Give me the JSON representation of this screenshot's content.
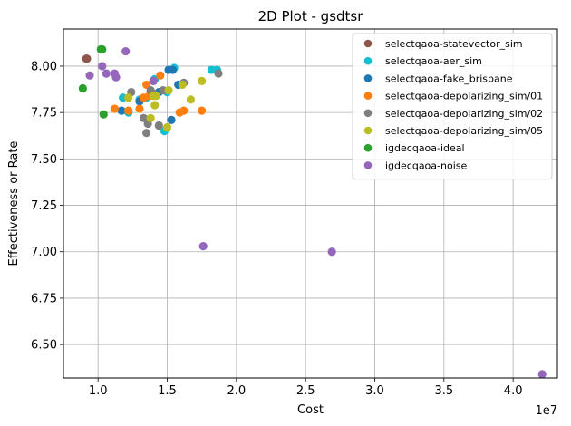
{
  "chart_data": {
    "type": "scatter",
    "title": "2D Plot - gsdtsr",
    "xlabel": "Cost",
    "ylabel": "Effectiveness or Rate",
    "x_offset_label": "1e7",
    "x_scale": 10000000,
    "xlim": [
      7500000,
      43200000
    ],
    "ylim": [
      6.32,
      8.2
    ],
    "x_ticks": [
      10000000,
      15000000,
      20000000,
      25000000,
      30000000,
      35000000,
      40000000
    ],
    "x_tick_labels": [
      "1.0",
      "1.5",
      "2.0",
      "2.5",
      "3.0",
      "3.5",
      "4.0"
    ],
    "y_ticks": [
      6.5,
      6.75,
      7.0,
      7.25,
      7.5,
      7.75,
      8.0
    ],
    "y_tick_labels": [
      "6.50",
      "6.75",
      "7.00",
      "7.25",
      "7.50",
      "7.75",
      "8.00"
    ],
    "grid": true,
    "legend_position": "top-right",
    "series": [
      {
        "name": "selectqaoa-statevector_sim",
        "color": "#8c564b",
        "points": [
          [
            9150000,
            8.04
          ],
          [
            9200000,
            8.04
          ]
        ]
      },
      {
        "name": "selectqaoa-aer_sim",
        "color": "#17becf",
        "points": [
          [
            11800000,
            7.83
          ],
          [
            12200000,
            7.75
          ],
          [
            13000000,
            7.82
          ],
          [
            13500000,
            7.83
          ],
          [
            14100000,
            7.93
          ],
          [
            14800000,
            7.65
          ],
          [
            15000000,
            7.86
          ],
          [
            15500000,
            7.99
          ],
          [
            18200000,
            7.98
          ],
          [
            18600000,
            7.98
          ]
        ]
      },
      {
        "name": "selectqaoa-fake_brisbane",
        "color": "#1f77b4",
        "points": [
          [
            11700000,
            7.76
          ],
          [
            13000000,
            7.81
          ],
          [
            14000000,
            7.92
          ],
          [
            14400000,
            7.86
          ],
          [
            15300000,
            7.71
          ],
          [
            15100000,
            7.98
          ],
          [
            15400000,
            7.98
          ],
          [
            15800000,
            7.9
          ]
        ]
      },
      {
        "name": "selectqaoa-depolarizing_sim/01",
        "color": "#ff7f0e",
        "points": [
          [
            11200000,
            7.77
          ],
          [
            12200000,
            7.76
          ],
          [
            13000000,
            7.77
          ],
          [
            13500000,
            7.9
          ],
          [
            13700000,
            7.84
          ],
          [
            14500000,
            7.95
          ],
          [
            15900000,
            7.75
          ],
          [
            16200000,
            7.76
          ],
          [
            17500000,
            7.76
          ],
          [
            13300000,
            7.83
          ]
        ]
      },
      {
        "name": "selectqaoa-depolarizing_sim/02",
        "color": "#7f7f7f",
        "points": [
          [
            12400000,
            7.86
          ],
          [
            13300000,
            7.72
          ],
          [
            13500000,
            7.64
          ],
          [
            13800000,
            7.87
          ],
          [
            14000000,
            7.85
          ],
          [
            14400000,
            7.68
          ],
          [
            14700000,
            7.87
          ],
          [
            16200000,
            7.91
          ],
          [
            18700000,
            7.96
          ],
          [
            13600000,
            7.69
          ]
        ]
      },
      {
        "name": "selectqaoa-depolarizing_sim/05",
        "color": "#bcbd22",
        "points": [
          [
            12200000,
            7.83
          ],
          [
            13800000,
            7.72
          ],
          [
            14000000,
            7.84
          ],
          [
            14100000,
            7.79
          ],
          [
            14200000,
            7.84
          ],
          [
            15000000,
            7.67
          ],
          [
            15100000,
            7.87
          ],
          [
            16100000,
            7.9
          ],
          [
            16700000,
            7.82
          ],
          [
            17500000,
            7.92
          ]
        ]
      },
      {
        "name": "igdecqaoa-ideal",
        "color": "#2ca02c",
        "points": [
          [
            8900000,
            7.88
          ],
          [
            10200000,
            8.09
          ],
          [
            10300000,
            8.09
          ],
          [
            10400000,
            7.74
          ]
        ]
      },
      {
        "name": "igdecqaoa-noise",
        "color": "#9467bd",
        "points": [
          [
            9400000,
            7.95
          ],
          [
            10300000,
            8.0
          ],
          [
            10600000,
            7.96
          ],
          [
            11200000,
            7.96
          ],
          [
            11300000,
            7.94
          ],
          [
            12000000,
            8.08
          ],
          [
            14000000,
            7.92
          ],
          [
            17600000,
            7.03
          ],
          [
            26900000,
            7.0
          ],
          [
            42100000,
            6.34
          ]
        ]
      }
    ]
  }
}
